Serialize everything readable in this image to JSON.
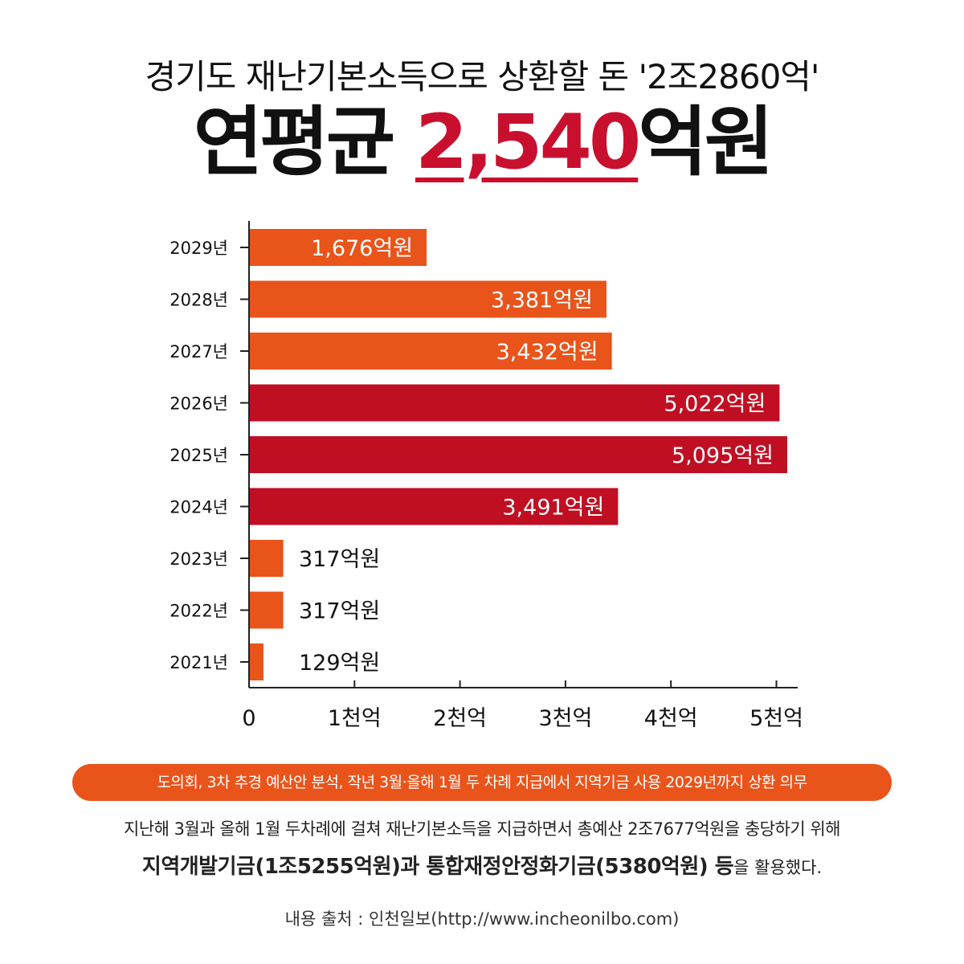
{
  "header": {
    "subtitle": "경기도 재난기본소득으로 상환할 돈 '2조2860억'",
    "headline_prefix": "연평균 ",
    "headline_number": "2,540",
    "headline_suffix": "억원"
  },
  "chart_data": {
    "type": "bar",
    "orientation": "horizontal",
    "categories": [
      "2029년",
      "2028년",
      "2027년",
      "2026년",
      "2025년",
      "2024년",
      "2023년",
      "2022년",
      "2021년"
    ],
    "values": [
      1676,
      3381,
      3432,
      5022,
      5095,
      3491,
      317,
      317,
      129
    ],
    "value_labels": [
      "1,676억원",
      "3,381억원",
      "3,432억원",
      "5,022억원",
      "5,095억원",
      "3,491억원",
      "317억원",
      "317억원",
      "129억원"
    ],
    "bar_colors": [
      "#e9541b",
      "#e9541b",
      "#e9541b",
      "#c00f23",
      "#c00f23",
      "#c00f23",
      "#e9541b",
      "#e9541b",
      "#e9541b"
    ],
    "x_ticks": [
      0,
      1000,
      2000,
      3000,
      4000,
      5000
    ],
    "x_tick_labels": [
      "0",
      "1천억",
      "2천억",
      "3천억",
      "4천억",
      "5천억"
    ],
    "xlim": [
      0,
      5250
    ],
    "unit": "억원",
    "grid": false
  },
  "info": {
    "banner": "도의회, 3차 추경 예산안 분석, 작년 3월·올해 1월 두 차례 지급에서 지역기금 사용 2029년까지 상환 의무",
    "line1": "지난해 3월과 올해 1월 두차례에 걸쳐 재난기본소득을 지급하면서 총예산 2조7677억원을 충당하기 위해",
    "line2_bold1": "지역개발기금(1조5255억원)과 통합재정안정화기금(5380억원) 등",
    "line2_rest": "을 활용했다."
  },
  "source": "내용 출처 : 인천일보(http://www.incheonilbo.com)"
}
